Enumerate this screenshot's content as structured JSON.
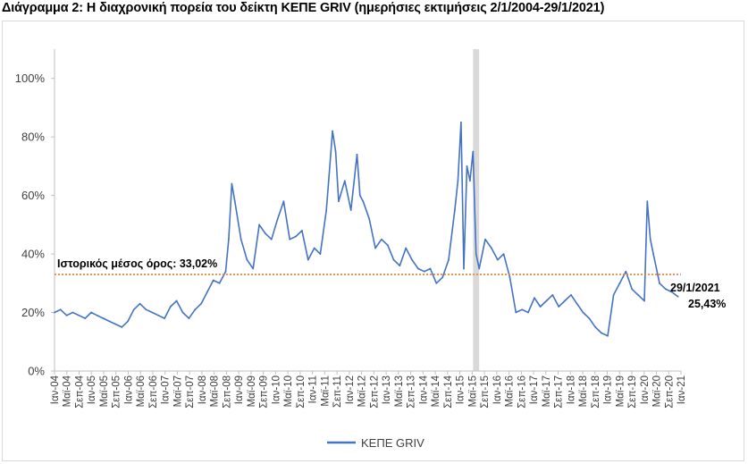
{
  "title": "Διάγραμμα 2: Η διαχρονική πορεία του δείκτη ΚΕΠΕ GRIV (ημερήσιες εκτιμήσεις 2/1/2004-29/1/2021)",
  "colors": {
    "series": "#4472c4",
    "mean_line": "#ed7d31",
    "band": "#d9d9d9",
    "axis": "#bfbfbf"
  },
  "chart_data": {
    "type": "line",
    "title": "Διάγραμμα 2: Η διαχρονική πορεία του δείκτη ΚΕΠΕ GRIV (ημερήσιες εκτιμήσεις 2/1/2004-29/1/2021)",
    "xlabel": "",
    "ylabel": "",
    "ylim": [
      0,
      110
    ],
    "y_ticks": [
      "0%",
      "20%",
      "40%",
      "60%",
      "80%",
      "100%"
    ],
    "y_tick_values": [
      0,
      20,
      40,
      60,
      80,
      100
    ],
    "x_tick_labels": [
      "Ιαν-04",
      "Μαϊ-04",
      "Σεπ-04",
      "Ιαν-05",
      "Μαϊ-05",
      "Σεπ-05",
      "Ιαν-06",
      "Μαϊ-06",
      "Σεπ-06",
      "Ιαν-07",
      "Μαϊ-07",
      "Σεπ-07",
      "Ιαν-08",
      "Μαϊ-08",
      "Σεπ-08",
      "Ιαν-09",
      "Μαϊ-09",
      "Σεπ-09",
      "Ιαν-10",
      "Μαϊ-10",
      "Σεπ-10",
      "Ιαν-11",
      "Μαϊ-11",
      "Σεπ-11",
      "Ιαν-12",
      "Μαϊ-12",
      "Σεπ-12",
      "Ιαν-13",
      "Μαϊ-13",
      "Σεπ-13",
      "Ιαν-14",
      "Μαϊ-14",
      "Σεπ-14",
      "Ιαν-15",
      "Μαϊ-15",
      "Σεπ-15",
      "Ιαν-16",
      "Μαϊ-16",
      "Σεπ-16",
      "Ιαν-17",
      "Μαϊ-17",
      "Σεπ-17",
      "Ιαν-18",
      "Μαϊ-18",
      "Σεπ-18",
      "Ιαν-19",
      "Μαϊ-19",
      "Σεπ-19",
      "Ιαν-20",
      "Μαϊ-20",
      "Σεπ-20",
      "Ιαν-21"
    ],
    "grid": false,
    "legend_position": "bottom",
    "series": [
      {
        "name": "ΚΕΠΕ GRIV",
        "x": [
          "2004-01",
          "2004-03",
          "2004-05",
          "2004-07",
          "2004-09",
          "2004-11",
          "2005-01",
          "2005-03",
          "2005-05",
          "2005-07",
          "2005-09",
          "2005-11",
          "2006-01",
          "2006-03",
          "2006-05",
          "2006-07",
          "2006-09",
          "2006-11",
          "2007-01",
          "2007-03",
          "2007-05",
          "2007-07",
          "2007-09",
          "2007-11",
          "2008-01",
          "2008-03",
          "2008-05",
          "2008-07",
          "2008-09",
          "2008-10",
          "2008-11",
          "2008-12",
          "2009-02",
          "2009-04",
          "2009-06",
          "2009-08",
          "2009-10",
          "2009-12",
          "2010-02",
          "2010-04",
          "2010-06",
          "2010-08",
          "2010-10",
          "2010-12",
          "2011-02",
          "2011-04",
          "2011-06",
          "2011-08",
          "2011-09",
          "2011-10",
          "2011-12",
          "2012-02",
          "2012-04",
          "2012-05",
          "2012-06",
          "2012-08",
          "2012-10",
          "2012-12",
          "2013-02",
          "2013-04",
          "2013-06",
          "2013-08",
          "2013-10",
          "2013-12",
          "2014-02",
          "2014-04",
          "2014-06",
          "2014-08",
          "2014-10",
          "2014-12",
          "2015-01",
          "2015-02",
          "2015-03",
          "2015-04",
          "2015-05",
          "2015-06",
          "2015-07",
          "2015-08",
          "2015-10",
          "2015-12",
          "2016-02",
          "2016-04",
          "2016-06",
          "2016-08",
          "2016-10",
          "2016-12",
          "2017-02",
          "2017-04",
          "2017-06",
          "2017-08",
          "2017-10",
          "2017-12",
          "2018-02",
          "2018-04",
          "2018-06",
          "2018-08",
          "2018-10",
          "2018-12",
          "2019-02",
          "2019-04",
          "2019-06",
          "2019-08",
          "2019-10",
          "2019-12",
          "2020-02",
          "2020-03",
          "2020-04",
          "2020-05",
          "2020-07",
          "2020-09",
          "2020-11",
          "2021-01"
        ],
        "values": [
          20,
          21,
          19,
          20,
          19,
          18,
          20,
          19,
          18,
          17,
          16,
          15,
          17,
          21,
          23,
          21,
          20,
          19,
          18,
          22,
          24,
          20,
          18,
          21,
          23,
          27,
          31,
          30,
          34,
          45,
          64,
          58,
          45,
          38,
          35,
          50,
          47,
          45,
          52,
          58,
          45,
          46,
          48,
          38,
          42,
          40,
          55,
          82,
          75,
          58,
          65,
          55,
          74,
          60,
          58,
          52,
          42,
          45,
          43,
          38,
          36,
          42,
          38,
          35,
          34,
          35,
          30,
          32,
          38,
          55,
          65,
          85,
          35,
          70,
          65,
          75,
          40,
          35,
          45,
          42,
          38,
          40,
          32,
          20,
          21,
          20,
          25,
          22,
          24,
          26,
          22,
          24,
          26,
          23,
          20,
          18,
          15,
          13,
          12,
          26,
          30,
          34,
          28,
          26,
          24,
          58,
          45,
          40,
          30,
          28,
          27,
          25.43
        ]
      }
    ],
    "mean_value": 33.02,
    "annotations": {
      "mean_label": "Ιστορικός μέσος όρος: 33,02%",
      "last_date": "29/1/2021",
      "last_value": "25,43%"
    },
    "shaded_period": [
      "2015-06",
      "2015-08"
    ]
  },
  "legend": {
    "label": "ΚΕΠΕ GRIV"
  }
}
